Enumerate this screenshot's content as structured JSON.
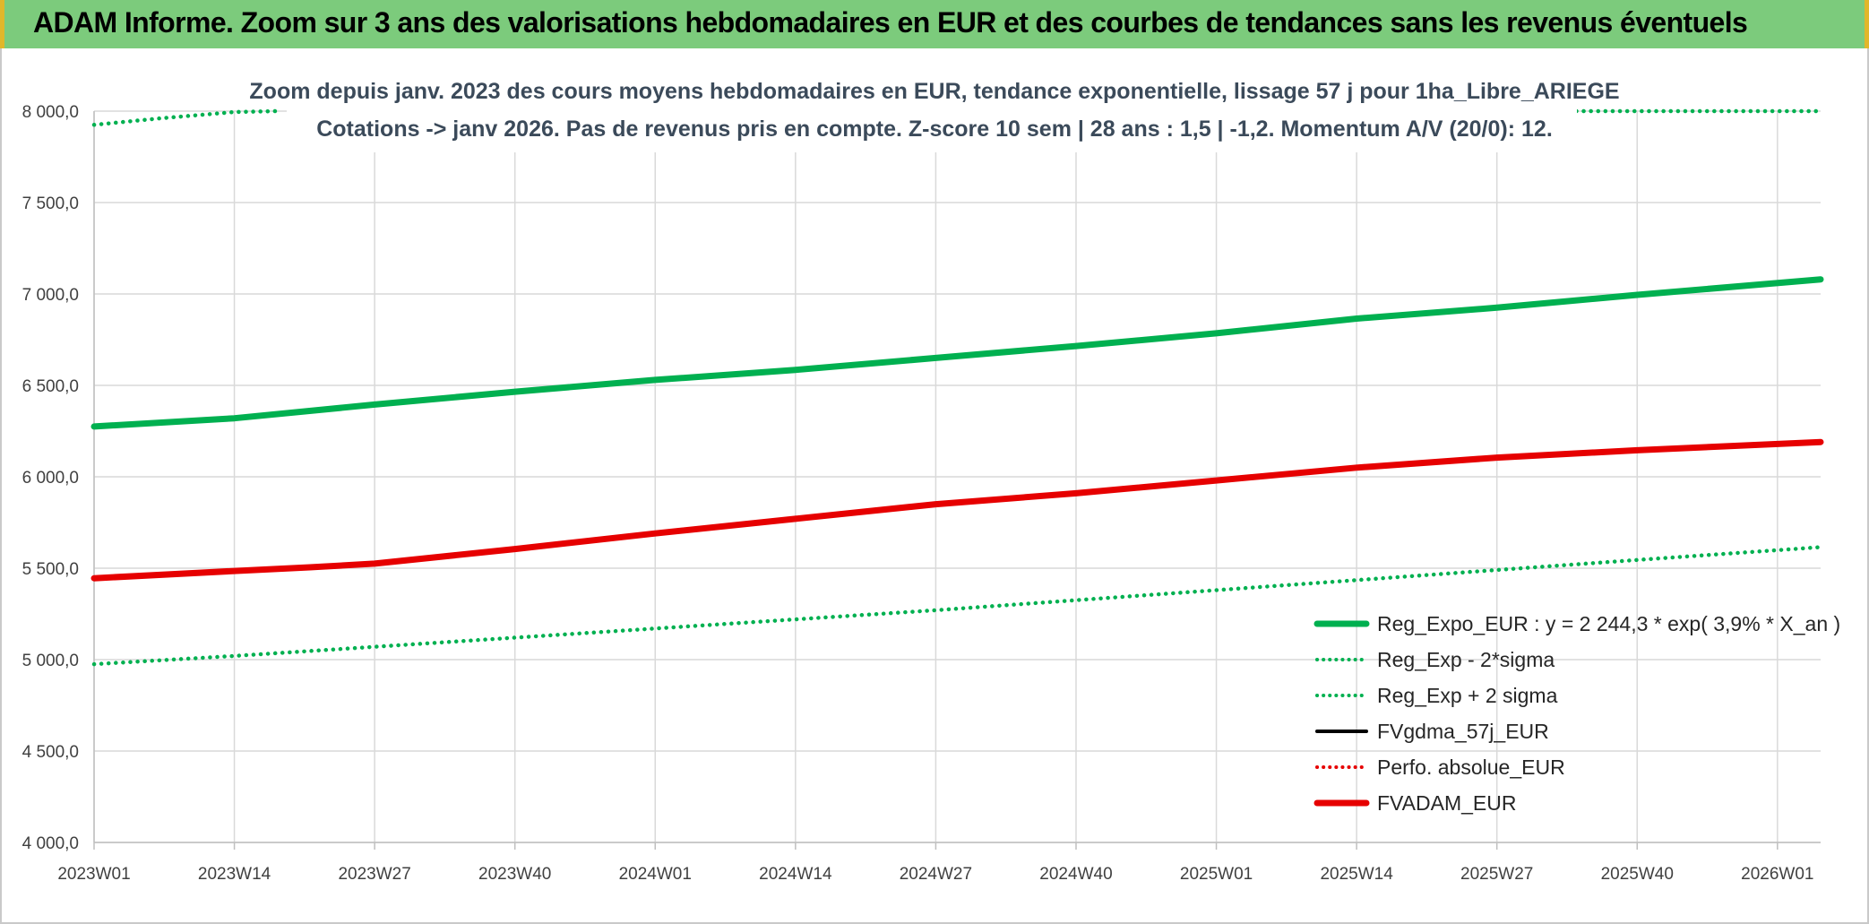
{
  "header": {
    "title": "ADAM Informe. Zoom sur 3 ans des valorisations hebdomadaires en EUR et des courbes de tendances sans les revenus éventuels"
  },
  "chart_data": {
    "type": "line",
    "title": [
      "Zoom depuis janv. 2023 des cours moyens hebdomadaires en EUR, tendance exponentielle, lissage 57 j pour 1ha_Libre_ARIEGE",
      "Cotations -> janv 2026. Pas de revenus pris en compte. Z-score 10 sem | 28 ans : 1,5 | -1,2. Momentum A/V (20/0): 12."
    ],
    "xlabel": "",
    "ylabel": "",
    "x_ticks": [
      "2023W01",
      "2023W14",
      "2023W27",
      "2023W40",
      "2024W01",
      "2024W14",
      "2024W27",
      "2024W40",
      "2025W01",
      "2025W14",
      "2025W27",
      "2025W40",
      "2026W01"
    ],
    "x_range_weeks": [
      0,
      160
    ],
    "y_ticks": [
      "4 000,0",
      "4 500,0",
      "5 000,0",
      "5 500,0",
      "6 000,0",
      "6 500,0",
      "7 000,0",
      "7 500,0",
      "8 000,0"
    ],
    "ylim": [
      4000,
      8000
    ],
    "grid": true,
    "legend_position": "bottom-right",
    "series": [
      {
        "name": "Reg_Expo_EUR : y = 2 244,3 * exp( 3,9% *  X_an )",
        "color": "#00b050",
        "style": "solid-thick",
        "points": [
          [
            0,
            6275
          ],
          [
            13,
            6320
          ],
          [
            26,
            6395
          ],
          [
            39,
            6465
          ],
          [
            52,
            6530
          ],
          [
            65,
            6585
          ],
          [
            78,
            6650
          ],
          [
            91,
            6715
          ],
          [
            104,
            6785
          ],
          [
            117,
            6865
          ],
          [
            130,
            6925
          ],
          [
            143,
            6995
          ],
          [
            160,
            7080
          ]
        ]
      },
      {
        "name": "Reg_Exp - 2*sigma",
        "color": "#00b050",
        "style": "dotted",
        "points": [
          [
            0,
            4975
          ],
          [
            13,
            5020
          ],
          [
            26,
            5070
          ],
          [
            39,
            5120
          ],
          [
            52,
            5170
          ],
          [
            65,
            5220
          ],
          [
            78,
            5270
          ],
          [
            91,
            5325
          ],
          [
            104,
            5380
          ],
          [
            117,
            5435
          ],
          [
            130,
            5490
          ],
          [
            143,
            5545
          ],
          [
            160,
            5615
          ]
        ]
      },
      {
        "name": "Reg_Exp + 2 sigma",
        "color": "#00b050",
        "style": "dotted",
        "points": [
          [
            0,
            7925
          ],
          [
            6,
            7960
          ],
          [
            13,
            7995
          ],
          [
            17,
            8000
          ]
        ],
        "points_right": [
          [
            134,
            8000
          ],
          [
            160,
            8000
          ]
        ]
      },
      {
        "name": "FVgdma_57j_EUR",
        "color": "#000000",
        "style": "solid",
        "points": [
          [
            0,
            5445
          ],
          [
            13,
            5485
          ],
          [
            20,
            5510
          ],
          [
            26,
            5530
          ],
          [
            39,
            5610
          ],
          [
            52,
            5690
          ],
          [
            65,
            5770
          ],
          [
            78,
            5850
          ],
          [
            91,
            5910
          ],
          [
            104,
            5980
          ],
          [
            117,
            6050
          ],
          [
            130,
            6110
          ],
          [
            143,
            6145
          ],
          [
            160,
            6190
          ]
        ]
      },
      {
        "name": "Perfo. absolue_EUR",
        "color": "#e60000",
        "style": "dotted",
        "points": []
      },
      {
        "name": "FVADAM_EUR",
        "color": "#e60000",
        "style": "solid-thick",
        "points": [
          [
            0,
            5445
          ],
          [
            13,
            5485
          ],
          [
            20,
            5505
          ],
          [
            26,
            5525
          ],
          [
            39,
            5605
          ],
          [
            52,
            5690
          ],
          [
            65,
            5770
          ],
          [
            78,
            5850
          ],
          [
            91,
            5910
          ],
          [
            104,
            5980
          ],
          [
            117,
            6050
          ],
          [
            130,
            6105
          ],
          [
            143,
            6145
          ],
          [
            160,
            6190
          ]
        ]
      }
    ]
  }
}
